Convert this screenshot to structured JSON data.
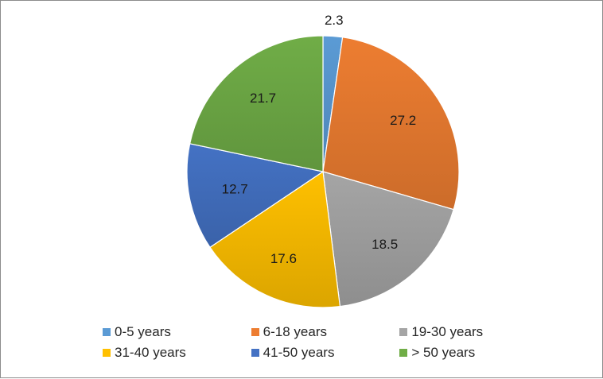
{
  "chart_data": {
    "type": "pie",
    "start_angle_deg": 90,
    "direction": "clockwise",
    "slices": [
      {
        "label": "0-5 years",
        "value": 2.3,
        "color": "#5b9bd5"
      },
      {
        "label": "6-18 years",
        "value": 27.2,
        "color": "#ed7d31"
      },
      {
        "label": "19-30 years",
        "value": 18.5,
        "color": "#a5a5a5"
      },
      {
        "label": "31-40 years",
        "value": 17.6,
        "color": "#ffc000"
      },
      {
        "label": "41-50 years",
        "value": 12.7,
        "color": "#4472c4"
      },
      {
        "label": "> 50 years",
        "value": 21.7,
        "color": "#70ad47"
      }
    ],
    "data_labels": [
      "2.3",
      "27.2",
      "18.5",
      "17.6",
      "12.7",
      "21.7"
    ],
    "legend": {
      "position": "bottom",
      "entries": [
        "0-5 years",
        "6-18 years",
        "19-30 years",
        "31-40 years",
        "41-50 years",
        "> 50 years"
      ]
    }
  }
}
